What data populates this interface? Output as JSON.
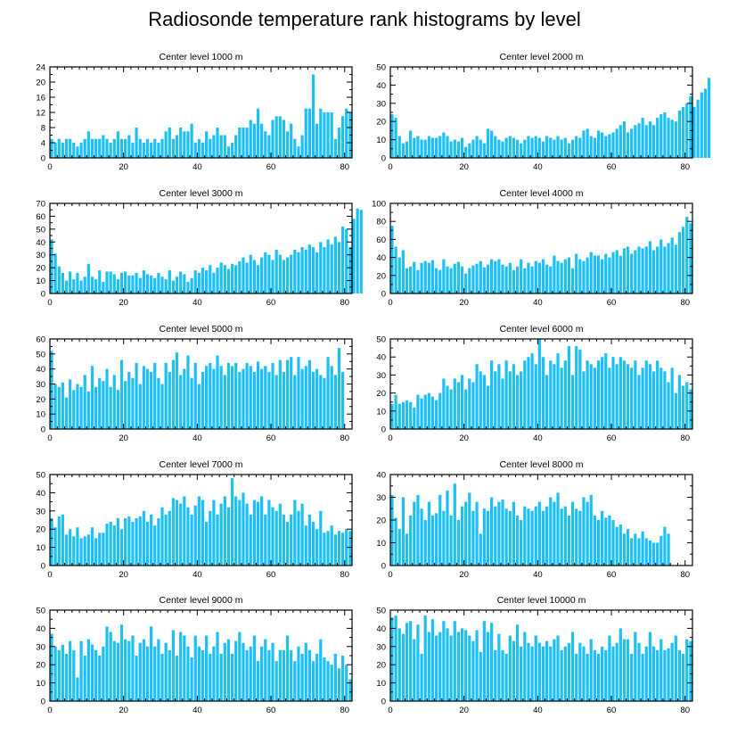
{
  "colors": {
    "bar": "#1ec0f4",
    "axis": "#000000"
  },
  "chart_data": {
    "type": "bar",
    "title": "Radiosonde temperature rank histograms by level",
    "xlim": [
      0,
      82
    ],
    "xticks": [
      0,
      20,
      40,
      60,
      80
    ],
    "panels": [
      {
        "title": "Center level 1000 m",
        "ylim": [
          0,
          24
        ],
        "yticks": [
          0,
          4,
          8,
          12,
          16,
          20,
          24
        ],
        "x_start": 0,
        "values": [
          5,
          4,
          5,
          4,
          5,
          5,
          4,
          3,
          4,
          5,
          7,
          5,
          5,
          5,
          6,
          5,
          4,
          5,
          7,
          5,
          5,
          6,
          4,
          8,
          5,
          4,
          5,
          4,
          5,
          4,
          5,
          7,
          8,
          5,
          6,
          8,
          7,
          7,
          9,
          4,
          5,
          4,
          7,
          5,
          6,
          8,
          6,
          6,
          3,
          4,
          6,
          8,
          8,
          8,
          10,
          9,
          13,
          9,
          7,
          6,
          10,
          11,
          11,
          10,
          7,
          9,
          5,
          3,
          6,
          13,
          13,
          22,
          9,
          13,
          12,
          12,
          12,
          5,
          8,
          11,
          13,
          12
        ]
      },
      {
        "title": "Center level 2000 m",
        "ylim": [
          0,
          50
        ],
        "yticks": [
          0,
          10,
          20,
          30,
          40,
          50
        ],
        "x_start": 0,
        "values": [
          24,
          22,
          12,
          8,
          9,
          15,
          11,
          12,
          10,
          10,
          12,
          11,
          11,
          12,
          14,
          12,
          9,
          10,
          9,
          11,
          6,
          8,
          10,
          12,
          10,
          8,
          16,
          15,
          12,
          10,
          9,
          11,
          12,
          11,
          10,
          8,
          10,
          12,
          11,
          12,
          11,
          9,
          12,
          11,
          10,
          12,
          10,
          11,
          8,
          10,
          12,
          11,
          15,
          16,
          12,
          11,
          15,
          14,
          12,
          13,
          14,
          16,
          18,
          20,
          14,
          16,
          18,
          19,
          22,
          18,
          20,
          18,
          22,
          24,
          25,
          22,
          21,
          20,
          26,
          28,
          30,
          34,
          28,
          32,
          36,
          38,
          44
        ]
      },
      {
        "title": "Center level 3000 m",
        "ylim": [
          0,
          70
        ],
        "yticks": [
          0,
          10,
          20,
          30,
          40,
          50,
          60,
          70
        ],
        "x_start": 0,
        "values": [
          42,
          31,
          21,
          16,
          10,
          17,
          11,
          16,
          10,
          13,
          23,
          13,
          11,
          18,
          9,
          17,
          17,
          15,
          11,
          16,
          17,
          14,
          14,
          16,
          12,
          18,
          15,
          14,
          12,
          16,
          13,
          11,
          18,
          10,
          13,
          17,
          15,
          9,
          12,
          18,
          16,
          20,
          18,
          22,
          16,
          20,
          24,
          22,
          19,
          23,
          22,
          25,
          28,
          24,
          30,
          26,
          22,
          28,
          32,
          30,
          26,
          34,
          30,
          26,
          28,
          30,
          34,
          32,
          36,
          34,
          38,
          36,
          32,
          40,
          36,
          42,
          38,
          44,
          40,
          52,
          50,
          36,
          58,
          66,
          65
        ]
      },
      {
        "title": "Center level 4000 m",
        "ylim": [
          0,
          100
        ],
        "yticks": [
          0,
          20,
          40,
          60,
          80,
          100
        ],
        "x_start": 0,
        "values": [
          75,
          52,
          40,
          48,
          28,
          30,
          35,
          26,
          34,
          36,
          34,
          37,
          28,
          26,
          38,
          30,
          28,
          33,
          35,
          30,
          22,
          28,
          31,
          33,
          36,
          29,
          32,
          38,
          36,
          38,
          32,
          30,
          34,
          26,
          30,
          38,
          28,
          34,
          30,
          36,
          34,
          38,
          32,
          30,
          42,
          36,
          34,
          38,
          40,
          28,
          44,
          38,
          36,
          40,
          46,
          42,
          42,
          38,
          44,
          40,
          46,
          48,
          42,
          50,
          52,
          44,
          48,
          52,
          50,
          52,
          58,
          48,
          52,
          60,
          52,
          56,
          62,
          54,
          68,
          74,
          85,
          78
        ]
      },
      {
        "title": "Center level 5000 m",
        "ylim": [
          0,
          60
        ],
        "yticks": [
          0,
          10,
          20,
          30,
          40,
          50,
          60
        ],
        "x_start": 0,
        "values": [
          52,
          30,
          28,
          31,
          21,
          33,
          26,
          30,
          28,
          36,
          25,
          42,
          28,
          34,
          32,
          40,
          28,
          36,
          26,
          46,
          32,
          38,
          34,
          44,
          30,
          42,
          40,
          38,
          44,
          34,
          30,
          44,
          38,
          46,
          51,
          36,
          40,
          49,
          34,
          44,
          30,
          38,
          42,
          44,
          40,
          49,
          42,
          36,
          44,
          42,
          44,
          38,
          40,
          44,
          42,
          38,
          45,
          40,
          42,
          38,
          44,
          36,
          46,
          38,
          46,
          48,
          36,
          48,
          40,
          42,
          46,
          38,
          40,
          36,
          34,
          48,
          42,
          36,
          54,
          38
        ]
      },
      {
        "title": "Center level 6000 m",
        "ylim": [
          0,
          50
        ],
        "yticks": [
          0,
          10,
          20,
          30,
          40,
          50
        ],
        "x_start": 0,
        "values": [
          14,
          19,
          14,
          15,
          16,
          15,
          12,
          19,
          17,
          19,
          20,
          18,
          16,
          20,
          28,
          24,
          22,
          28,
          26,
          30,
          22,
          28,
          26,
          36,
          32,
          30,
          24,
          38,
          32,
          36,
          28,
          38,
          32,
          36,
          30,
          32,
          38,
          40,
          42,
          36,
          50,
          40,
          30,
          38,
          36,
          42,
          34,
          38,
          46,
          30,
          46,
          44,
          32,
          38,
          36,
          34,
          38,
          40,
          42,
          34,
          40,
          36,
          40,
          38,
          36,
          34,
          38,
          30,
          34,
          38,
          36,
          32,
          38,
          34,
          32,
          26,
          34,
          20,
          30,
          24,
          26,
          22
        ]
      },
      {
        "title": "Center level 7000 m",
        "ylim": [
          0,
          50
        ],
        "yticks": [
          0,
          10,
          20,
          30,
          40,
          50
        ],
        "x_start": 0,
        "values": [
          26,
          21,
          27,
          28,
          17,
          20,
          16,
          21,
          15,
          16,
          17,
          21,
          15,
          18,
          18,
          23,
          24,
          22,
          26,
          20,
          26,
          27,
          24,
          26,
          27,
          30,
          24,
          28,
          22,
          26,
          32,
          28,
          30,
          37,
          36,
          34,
          38,
          32,
          28,
          33,
          38,
          36,
          24,
          30,
          36,
          28,
          34,
          38,
          32,
          48,
          38,
          36,
          40,
          34,
          28,
          36,
          35,
          38,
          28,
          36,
          32,
          30,
          34,
          28,
          24,
          28,
          36,
          30,
          34,
          22,
          28,
          24,
          20,
          30,
          18,
          19,
          22,
          17,
          19,
          18,
          20,
          19
        ]
      },
      {
        "title": "Center level 8000 m",
        "ylim": [
          0,
          40
        ],
        "yticks": [
          0,
          10,
          20,
          30,
          40
        ],
        "x_start": 0,
        "values": [
          31,
          21,
          16,
          30,
          14,
          22,
          28,
          31,
          25,
          20,
          28,
          22,
          23,
          31,
          24,
          33,
          22,
          36,
          20,
          26,
          28,
          32,
          24,
          28,
          14,
          25,
          24,
          30,
          26,
          28,
          29,
          25,
          24,
          28,
          22,
          20,
          26,
          25,
          24,
          26,
          28,
          24,
          26,
          30,
          28,
          32,
          25,
          26,
          22,
          28,
          25,
          24,
          30,
          28,
          31,
          22,
          20,
          24,
          21,
          22,
          20,
          17,
          18,
          14,
          16,
          12,
          14,
          12,
          15,
          12,
          11,
          10,
          10,
          13,
          17,
          14
        ]
      },
      {
        "title": "Center level 9000 m",
        "ylim": [
          0,
          50
        ],
        "yticks": [
          0,
          10,
          20,
          30,
          40,
          50
        ],
        "x_start": 0,
        "values": [
          37,
          30,
          28,
          31,
          26,
          33,
          28,
          13,
          33,
          25,
          34,
          31,
          28,
          25,
          30,
          41,
          38,
          33,
          32,
          42,
          34,
          33,
          36,
          25,
          32,
          34,
          30,
          41,
          30,
          34,
          26,
          32,
          28,
          39,
          25,
          38,
          36,
          30,
          24,
          36,
          30,
          28,
          36,
          26,
          30,
          38,
          26,
          32,
          34,
          26,
          33,
          38,
          32,
          28,
          30,
          36,
          22,
          30,
          34,
          28,
          32,
          22,
          28,
          28,
          36,
          28,
          22,
          30,
          26,
          32,
          28,
          22,
          26,
          34,
          24,
          22,
          20,
          26,
          18,
          25,
          20,
          12
        ]
      },
      {
        "title": "Center level 10000 m",
        "ylim": [
          0,
          50
        ],
        "yticks": [
          0,
          10,
          20,
          30,
          40,
          50
        ],
        "x_start": 0,
        "values": [
          46,
          47,
          40,
          37,
          43,
          44,
          34,
          42,
          26,
          47,
          38,
          45,
          36,
          38,
          44,
          40,
          36,
          44,
          38,
          40,
          39,
          36,
          33,
          39,
          27,
          44,
          38,
          43,
          28,
          37,
          28,
          26,
          36,
          33,
          42,
          30,
          38,
          32,
          30,
          36,
          32,
          30,
          33,
          30,
          34,
          36,
          28,
          30,
          32,
          38,
          26,
          32,
          30,
          26,
          34,
          28,
          26,
          30,
          28,
          36,
          30,
          32,
          40,
          34,
          34,
          26,
          38,
          32,
          26,
          30,
          38,
          30,
          28,
          34,
          28,
          29,
          32,
          36,
          28,
          26,
          34,
          33
        ]
      }
    ]
  }
}
